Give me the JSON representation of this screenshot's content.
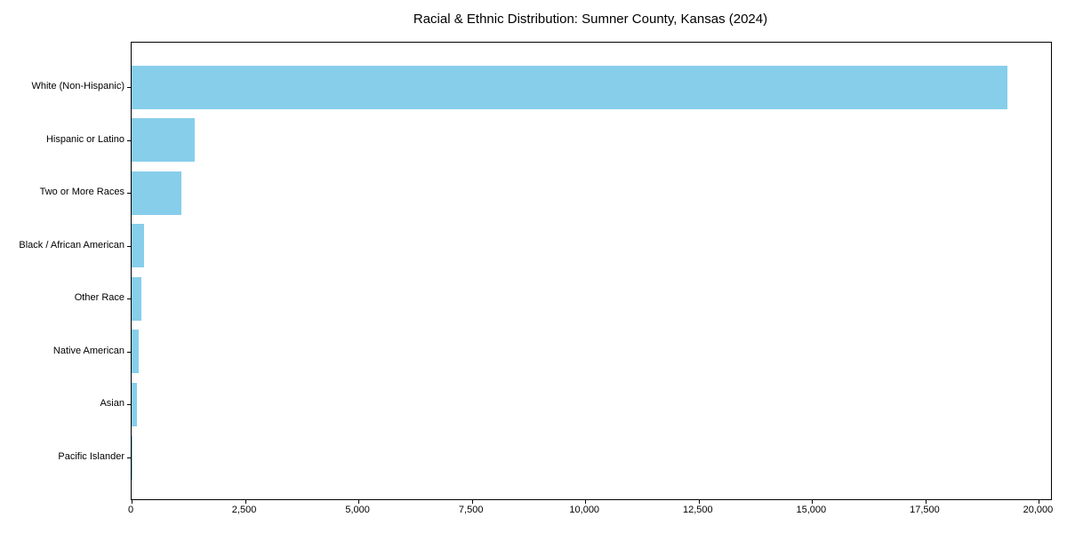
{
  "chart_data": {
    "type": "bar",
    "orientation": "horizontal",
    "title": "Racial & Ethnic Distribution: Sumner County, Kansas (2024)",
    "categories": [
      "White (Non-Hispanic)",
      "Hispanic or Latino",
      "Two or More Races",
      "Black / African American",
      "Other Race",
      "Native American",
      "Asian",
      "Pacific Islander"
    ],
    "values": [
      19300,
      1400,
      1100,
      270,
      220,
      165,
      125,
      10
    ],
    "xlabel": "",
    "ylabel": "",
    "xlim": [
      0,
      20265
    ],
    "xticks": [
      0,
      2500,
      5000,
      7500,
      10000,
      12500,
      15000,
      17500,
      20000
    ],
    "xtick_labels": [
      "0",
      "2,500",
      "5,000",
      "7,500",
      "10,000",
      "12,500",
      "15,000",
      "17,500",
      "20,000"
    ],
    "bar_color": "#87CEEB",
    "text_color": "#000000",
    "spine_color": "#000000",
    "background_color": "#ffffff",
    "grid": false,
    "legend": null
  }
}
